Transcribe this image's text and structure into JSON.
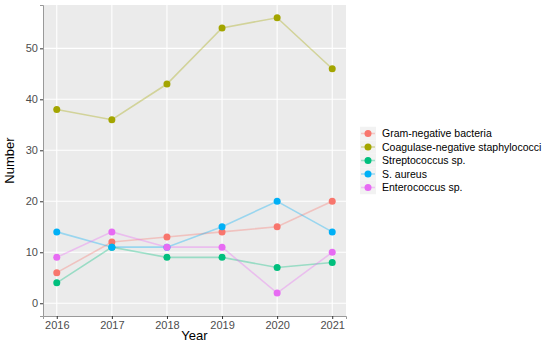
{
  "chart_data": {
    "type": "line",
    "x_label": "Year",
    "y_label": "Number",
    "x": [
      2016,
      2017,
      2018,
      2019,
      2020,
      2021
    ],
    "xlim": [
      2015.75,
      2021.25
    ],
    "xticks": [
      2016,
      2017,
      2018,
      2019,
      2020,
      2021
    ],
    "ylim": [
      -2.5,
      58.5
    ],
    "yticks": [
      0,
      10,
      20,
      30,
      40,
      50
    ],
    "grid": true,
    "legend": "right",
    "marker": "circle",
    "series": [
      {
        "name": "Gram-negative bacteria",
        "color": "#F8766D",
        "values": [
          6,
          12,
          13,
          14,
          15,
          20
        ]
      },
      {
        "name": "Coagulase-negative staphylococci",
        "color": "#A3A500",
        "values": [
          38,
          36,
          43,
          54,
          56,
          46
        ]
      },
      {
        "name": "Streptococcus sp.",
        "color": "#00BF7D",
        "values": [
          4,
          11,
          9,
          9,
          7,
          8
        ]
      },
      {
        "name": "S. aureus",
        "color": "#00B0F6",
        "values": [
          14,
          11,
          11,
          15,
          20,
          14
        ]
      },
      {
        "name": "Enterococcus sp.",
        "color": "#E76BF3",
        "values": [
          9,
          14,
          11,
          11,
          2,
          10
        ]
      }
    ]
  }
}
